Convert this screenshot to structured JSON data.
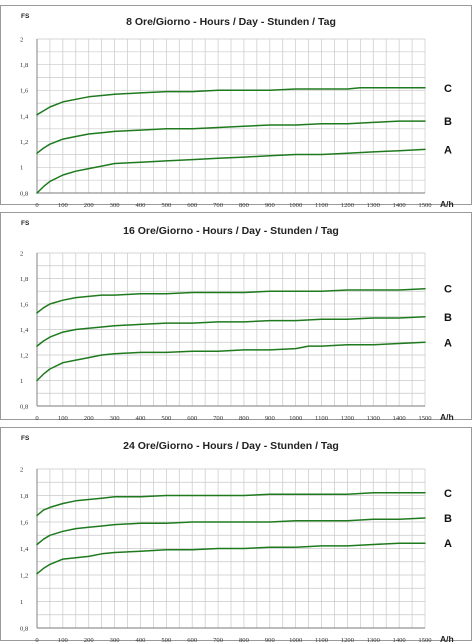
{
  "chart_data": [
    {
      "type": "line",
      "title": "8 Ore/Giorno - Hours / Day - Stunden / Tag",
      "ylabel": "FS",
      "xlabel": "A/h",
      "xlim": [
        0,
        1500
      ],
      "ylim": [
        0.8,
        2
      ],
      "xticks": [
        "0",
        "100",
        "200",
        "300",
        "400",
        "500",
        "600",
        "700",
        "800",
        "900",
        "1000",
        "1100",
        "1200",
        "1300",
        "1400",
        "1500"
      ],
      "yticks": [
        "0,8",
        "1",
        "1,2",
        "1,4",
        "1,6",
        "1,8",
        "2"
      ],
      "grid": true,
      "series": [
        {
          "name": "C",
          "x": [
            0,
            25,
            50,
            100,
            150,
            200,
            250,
            300,
            400,
            500,
            600,
            700,
            800,
            900,
            1000,
            1100,
            1200,
            1250,
            1300,
            1400,
            1500
          ],
          "y": [
            1.41,
            1.44,
            1.47,
            1.51,
            1.53,
            1.55,
            1.56,
            1.57,
            1.58,
            1.59,
            1.59,
            1.6,
            1.6,
            1.6,
            1.61,
            1.61,
            1.61,
            1.62,
            1.62,
            1.62,
            1.62
          ]
        },
        {
          "name": "B",
          "x": [
            0,
            25,
            50,
            100,
            150,
            200,
            250,
            300,
            400,
            500,
            600,
            700,
            800,
            900,
            1000,
            1100,
            1200,
            1300,
            1400,
            1500
          ],
          "y": [
            1.11,
            1.15,
            1.18,
            1.22,
            1.24,
            1.26,
            1.27,
            1.28,
            1.29,
            1.3,
            1.3,
            1.31,
            1.32,
            1.33,
            1.33,
            1.34,
            1.34,
            1.35,
            1.36,
            1.36
          ]
        },
        {
          "name": "A",
          "x": [
            0,
            25,
            50,
            100,
            150,
            200,
            250,
            300,
            400,
            500,
            600,
            700,
            800,
            900,
            1000,
            1100,
            1200,
            1300,
            1400,
            1500
          ],
          "y": [
            0.8,
            0.85,
            0.89,
            0.94,
            0.97,
            0.99,
            1.01,
            1.03,
            1.04,
            1.05,
            1.06,
            1.07,
            1.08,
            1.09,
            1.1,
            1.1,
            1.11,
            1.12,
            1.13,
            1.14
          ]
        }
      ]
    },
    {
      "type": "line",
      "title": "16 Ore/Giorno - Hours / Day - Stunden / Tag",
      "ylabel": "FS",
      "xlabel": "A/h",
      "xlim": [
        0,
        1500
      ],
      "ylim": [
        0.8,
        2
      ],
      "xticks": [
        "0",
        "100",
        "200",
        "300",
        "400",
        "500",
        "600",
        "700",
        "800",
        "900",
        "1000",
        "1100",
        "1200",
        "1300",
        "1400",
        "1500"
      ],
      "yticks": [
        "0,8",
        "1",
        "1,2",
        "1,4",
        "1,6",
        "1,8",
        "2"
      ],
      "grid": true,
      "series": [
        {
          "name": "C",
          "x": [
            0,
            25,
            50,
            100,
            150,
            200,
            250,
            300,
            400,
            500,
            600,
            700,
            800,
            900,
            1000,
            1100,
            1200,
            1300,
            1400,
            1500
          ],
          "y": [
            1.53,
            1.57,
            1.6,
            1.63,
            1.65,
            1.66,
            1.67,
            1.67,
            1.68,
            1.68,
            1.69,
            1.69,
            1.69,
            1.7,
            1.7,
            1.7,
            1.71,
            1.71,
            1.71,
            1.72
          ]
        },
        {
          "name": "B",
          "x": [
            0,
            25,
            50,
            100,
            150,
            200,
            250,
            300,
            400,
            500,
            600,
            700,
            800,
            900,
            1000,
            1100,
            1200,
            1300,
            1400,
            1500
          ],
          "y": [
            1.27,
            1.31,
            1.34,
            1.38,
            1.4,
            1.41,
            1.42,
            1.43,
            1.44,
            1.45,
            1.45,
            1.46,
            1.46,
            1.47,
            1.47,
            1.48,
            1.48,
            1.49,
            1.49,
            1.5
          ]
        },
        {
          "name": "A",
          "x": [
            0,
            25,
            50,
            100,
            150,
            200,
            250,
            300,
            400,
            500,
            600,
            700,
            800,
            900,
            1000,
            1050,
            1100,
            1200,
            1300,
            1400,
            1500
          ],
          "y": [
            1.0,
            1.05,
            1.09,
            1.14,
            1.16,
            1.18,
            1.2,
            1.21,
            1.22,
            1.22,
            1.23,
            1.23,
            1.24,
            1.24,
            1.25,
            1.27,
            1.27,
            1.28,
            1.28,
            1.29,
            1.3
          ]
        }
      ]
    },
    {
      "type": "line",
      "title": "24 Ore/Giorno - Hours / Day - Stunden / Tag",
      "ylabel": "FS",
      "xlabel": "A/h",
      "xlim": [
        0,
        1500
      ],
      "ylim": [
        0.8,
        2
      ],
      "xticks": [
        "0",
        "100",
        "200",
        "300",
        "400",
        "500",
        "600",
        "700",
        "800",
        "900",
        "1000",
        "1100",
        "1200",
        "1300",
        "1400",
        "1500"
      ],
      "yticks": [
        "0,8",
        "1",
        "1,2",
        "1,4",
        "1,6",
        "1,8",
        "2"
      ],
      "grid": true,
      "series": [
        {
          "name": "C",
          "x": [
            0,
            25,
            50,
            100,
            150,
            200,
            250,
            300,
            400,
            500,
            600,
            700,
            800,
            900,
            1000,
            1100,
            1200,
            1300,
            1400,
            1500
          ],
          "y": [
            1.65,
            1.69,
            1.71,
            1.74,
            1.76,
            1.77,
            1.78,
            1.79,
            1.79,
            1.8,
            1.8,
            1.8,
            1.8,
            1.81,
            1.81,
            1.81,
            1.81,
            1.82,
            1.82,
            1.82
          ]
        },
        {
          "name": "B",
          "x": [
            0,
            25,
            50,
            100,
            150,
            200,
            250,
            300,
            400,
            500,
            600,
            700,
            800,
            900,
            1000,
            1100,
            1200,
            1300,
            1400,
            1500
          ],
          "y": [
            1.43,
            1.47,
            1.5,
            1.53,
            1.55,
            1.56,
            1.57,
            1.58,
            1.59,
            1.59,
            1.6,
            1.6,
            1.6,
            1.6,
            1.61,
            1.61,
            1.61,
            1.62,
            1.62,
            1.63
          ]
        },
        {
          "name": "A",
          "x": [
            0,
            25,
            50,
            100,
            150,
            200,
            250,
            300,
            400,
            500,
            600,
            700,
            800,
            900,
            1000,
            1100,
            1200,
            1300,
            1400,
            1500
          ],
          "y": [
            1.21,
            1.25,
            1.28,
            1.32,
            1.33,
            1.34,
            1.36,
            1.37,
            1.38,
            1.39,
            1.39,
            1.4,
            1.4,
            1.41,
            1.41,
            1.42,
            1.42,
            1.43,
            1.44,
            1.44
          ]
        }
      ]
    }
  ],
  "colors": {
    "line": "#1f7a1f",
    "grid": "#c8c8c8",
    "axis": "#7a7a7a"
  }
}
